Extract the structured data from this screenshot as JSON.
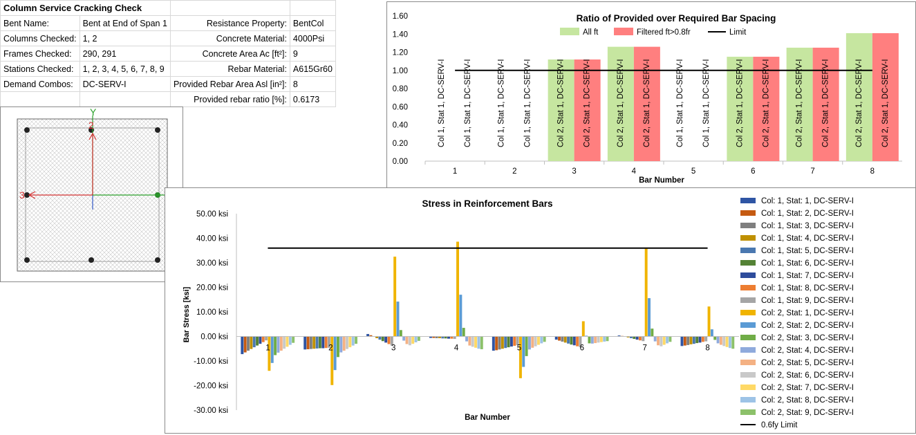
{
  "sheet": {
    "title": "Column Service Cracking Check",
    "rows": [
      {
        "label": "Bent Name:",
        "value": "Bent at End of Span 1",
        "label2": "Resistance Property:",
        "value2": "BentCol"
      },
      {
        "label": "Columns Checked:",
        "value": "1, 2",
        "label2": "Concrete Material:",
        "value2": "4000Psi"
      },
      {
        "label": "Frames Checked:",
        "value": "290, 291",
        "label2": "Concrete Area Ac [ft²]:",
        "value2": "9"
      },
      {
        "label": "Stations Checked:",
        "value": "1, 2, 3, 4, 5, 6, 7, 8, 9",
        "label2": "Rebar Material:",
        "value2": "A615Gr60"
      },
      {
        "label": "Demand Combos:",
        "value": "DC-SERV-I",
        "label2": "Provided Rebar Area Asl [in²]:",
        "value2": "8"
      },
      {
        "label": "",
        "value": "",
        "label2": "Provided rebar ratio [%]:",
        "value2": "0.6173"
      }
    ]
  },
  "section": {
    "axis_labels": {
      "y": "Y",
      "x": "X",
      "axis3": "3",
      "axis2": "2"
    }
  },
  "colors": {
    "all_ft": "#c6e6a0",
    "filtered": "#ff7f7f",
    "limit": "#000000",
    "bar_text": "#000000"
  },
  "chart_data": [
    {
      "type": "bar",
      "title": "Ratio of Provided over Required Bar Spacing",
      "xlabel": "Bar Number",
      "ylabel": "",
      "ylim": [
        0,
        1.6
      ],
      "yticks": [
        "0.00",
        "0.20",
        "0.40",
        "0.60",
        "0.80",
        "1.00",
        "1.20",
        "1.40",
        "1.60"
      ],
      "categories": [
        "1",
        "2",
        "3",
        "4",
        "5",
        "6",
        "7",
        "8"
      ],
      "series": [
        {
          "name": "All ft",
          "values": [
            0,
            0,
            1.12,
            1.26,
            0,
            1.15,
            1.25,
            1.41
          ],
          "labels": [
            "Col 1, Stat 1, DC-SERV-I",
            "Col 1, Stat 1, DC-SERV-I",
            "Col 2, Stat 1, DC-SERV-I",
            "Col 2, Stat 1, DC-SERV-I",
            "Col 1, Stat 1, DC-SERV-I",
            "Col 2, Stat 1, DC-SERV-I",
            "Col 2, Stat 1, DC-SERV-I",
            "Col 2, Stat 1, DC-SERV-I"
          ]
        },
        {
          "name": "Filtered ft>0.8fr",
          "values": [
            0,
            0,
            1.12,
            1.26,
            0,
            1.15,
            1.25,
            1.41
          ],
          "labels": [
            "Col 1, Stat 1, DC-SERV-I",
            "Col 1, Stat 1, DC-SERV-I",
            "Col 2, Stat 1, DC-SERV-I",
            "Col 2, Stat 1, DC-SERV-I",
            "Col 1, Stat 1, DC-SERV-I",
            "Col 2, Stat 1, DC-SERV-I",
            "Col 2, Stat 1, DC-SERV-I",
            "Col 2, Stat 1, DC-SERV-I"
          ]
        }
      ],
      "limit": {
        "name": "Limit",
        "value": 1.0
      },
      "legend": "top"
    },
    {
      "type": "bar",
      "title": "Stress in Reinforcement Bars",
      "xlabel": "Bar Number",
      "ylabel": "Bar Stress [ksi]",
      "ylim": [
        -30,
        50
      ],
      "yticks": [
        "-30.00 ksi",
        "-20.00 ksi",
        "-10.00 ksi",
        "0.00 ksi",
        "10.00 ksi",
        "20.00 ksi",
        "30.00 ksi",
        "40.00 ksi",
        "50.00 ksi"
      ],
      "categories": [
        "1",
        "2",
        "3",
        "4",
        "5",
        "6",
        "7",
        "8"
      ],
      "legend": "right",
      "series": [
        {
          "name": "Col: 1, Stat: 1, DC-SERV-I",
          "color": "#2f55a4",
          "values": [
            -7.2,
            -5.3,
            1.0,
            -0.6,
            -5.8,
            -1.3,
            0.4,
            -3.9
          ]
        },
        {
          "name": "Col: 1, Stat: 2, DC-SERV-I",
          "color": "#c55a11",
          "values": [
            -6.5,
            -5.2,
            0.5,
            -0.6,
            -5.6,
            -1.7,
            0.2,
            -3.7
          ]
        },
        {
          "name": "Col: 1, Stat: 3, DC-SERV-I",
          "color": "#7f7f7f",
          "values": [
            -5.8,
            -5.1,
            -0.1,
            -0.7,
            -5.3,
            -2.1,
            -0.1,
            -3.5
          ]
        },
        {
          "name": "Col: 1, Stat: 4, DC-SERV-I",
          "color": "#bf9000",
          "values": [
            -5.1,
            -5.0,
            -0.7,
            -0.7,
            -5.0,
            -2.5,
            -0.4,
            -3.2
          ]
        },
        {
          "name": "Col: 1, Stat: 5, DC-SERV-I",
          "color": "#4a78b0",
          "values": [
            -4.4,
            -4.9,
            -1.3,
            -0.8,
            -4.7,
            -2.9,
            -0.7,
            -3.0
          ]
        },
        {
          "name": "Col: 1, Stat: 6, DC-SERV-I",
          "color": "#548235",
          "values": [
            -3.7,
            -4.8,
            -1.9,
            -0.8,
            -4.4,
            -3.3,
            -1.0,
            -2.7
          ]
        },
        {
          "name": "Col: 1, Stat: 7, DC-SERV-I",
          "color": "#2e4c9c",
          "values": [
            -3.0,
            -4.8,
            -2.5,
            -0.9,
            -4.1,
            -3.6,
            -1.3,
            -2.5
          ]
        },
        {
          "name": "Col: 1, Stat: 8, DC-SERV-I",
          "color": "#ed7d31",
          "values": [
            -2.3,
            -4.7,
            -3.1,
            -0.9,
            -3.8,
            -4.0,
            -1.6,
            -2.2
          ]
        },
        {
          "name": "Col: 1, Stat: 9, DC-SERV-I",
          "color": "#a5a5a5",
          "values": [
            -1.6,
            -4.6,
            -3.7,
            -1.0,
            -3.5,
            -4.3,
            -1.9,
            -2.0
          ]
        },
        {
          "name": "Col: 2, Stat: 1, DC-SERV-I",
          "color": "#f0b400",
          "values": [
            -14.0,
            -19.8,
            32.5,
            38.6,
            -17.0,
            6.2,
            36.0,
            12.2
          ]
        },
        {
          "name": "Col: 2, Stat: 2, DC-SERV-I",
          "color": "#5b9bd5",
          "values": [
            -10.8,
            -13.7,
            14.2,
            17.0,
            -12.4,
            0.3,
            15.6,
            2.9
          ]
        },
        {
          "name": "Col: 2, Stat: 3, DC-SERV-I",
          "color": "#70ad47",
          "values": [
            -7.6,
            -8.4,
            2.6,
            3.5,
            -8.0,
            -2.8,
            3.2,
            -1.4
          ]
        },
        {
          "name": "Col: 2, Stat: 4, DC-SERV-I",
          "color": "#8faadc",
          "values": [
            -6.6,
            -6.5,
            -1.7,
            -2.0,
            -5.3,
            -2.9,
            -2.0,
            -2.8
          ]
        },
        {
          "name": "Col: 2, Stat: 5, DC-SERV-I",
          "color": "#f4b183",
          "values": [
            -5.8,
            -5.8,
            -3.1,
            -3.7,
            -4.6,
            -2.7,
            -3.6,
            -3.4
          ]
        },
        {
          "name": "Col: 2, Stat: 6, DC-SERV-I",
          "color": "#c9c9c9",
          "values": [
            -5.0,
            -5.1,
            -3.6,
            -4.2,
            -4.0,
            -2.5,
            -4.0,
            -3.9
          ]
        },
        {
          "name": "Col: 2, Stat: 7, DC-SERV-I",
          "color": "#ffd966",
          "values": [
            -4.2,
            -4.4,
            -3.0,
            -4.6,
            -3.4,
            -2.3,
            -3.4,
            -4.3
          ]
        },
        {
          "name": "Col: 2, Stat: 8, DC-SERV-I",
          "color": "#9dc3e6",
          "values": [
            -3.4,
            -3.7,
            -2.4,
            -5.0,
            -2.8,
            -2.1,
            -2.8,
            -4.7
          ]
        },
        {
          "name": "Col: 2, Stat: 9, DC-SERV-I",
          "color": "#8cc16a",
          "values": [
            -2.6,
            -3.0,
            -1.8,
            -5.2,
            -2.2,
            -1.9,
            -2.2,
            -5.0
          ]
        }
      ],
      "limit": {
        "name": "0.6fy Limit",
        "value": 36
      }
    }
  ]
}
